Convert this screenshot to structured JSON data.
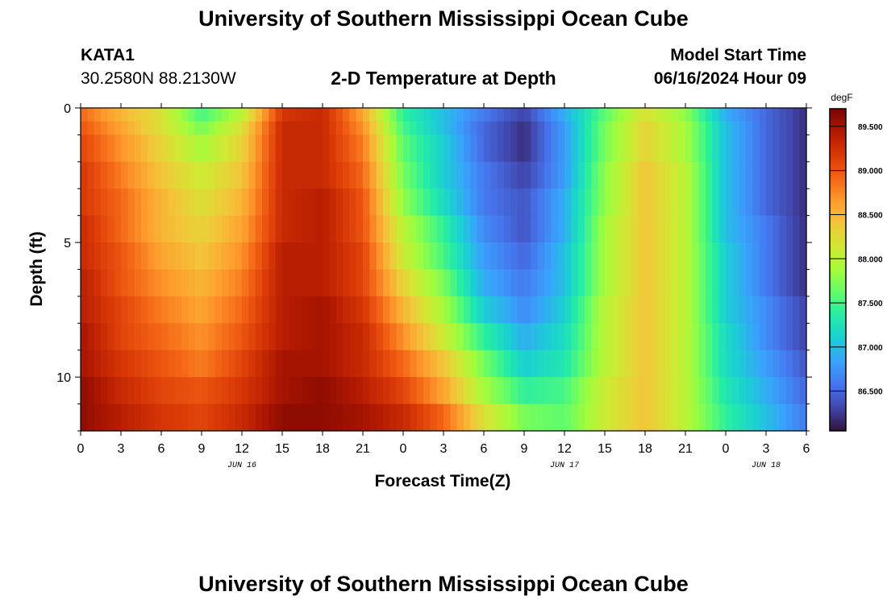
{
  "page": {
    "title_top": "University of Southern Mississippi Ocean Cube",
    "title_bottom": "University of Southern Mississippi Ocean Cube",
    "station_id": "KATA1",
    "station_coords": "30.2580N  88.2130W",
    "model_start_label": "Model Start Time",
    "model_start_value": "06/16/2024 Hour 09"
  },
  "chart_data": {
    "type": "heatmap",
    "title": "2-D Temperature at Depth",
    "xlabel": "Forecast Time(Z)",
    "ylabel": "Depth (ft)",
    "x_unit": "hours since 00Z Jun 16",
    "xlim": [
      0,
      54
    ],
    "ylim": [
      12,
      0
    ],
    "x_ticks": [
      {
        "value": 0,
        "label": "0"
      },
      {
        "value": 3,
        "label": "3"
      },
      {
        "value": 6,
        "label": "6"
      },
      {
        "value": 9,
        "label": "9"
      },
      {
        "value": 12,
        "label": "12"
      },
      {
        "value": 15,
        "label": "15"
      },
      {
        "value": 18,
        "label": "18"
      },
      {
        "value": 21,
        "label": "21"
      },
      {
        "value": 24,
        "label": "0"
      },
      {
        "value": 27,
        "label": "3"
      },
      {
        "value": 30,
        "label": "6"
      },
      {
        "value": 33,
        "label": "9"
      },
      {
        "value": 36,
        "label": "12"
      },
      {
        "value": 39,
        "label": "15"
      },
      {
        "value": 42,
        "label": "18"
      },
      {
        "value": 45,
        "label": "21"
      },
      {
        "value": 48,
        "label": "0"
      },
      {
        "value": 51,
        "label": "3"
      },
      {
        "value": 54,
        "label": "6"
      }
    ],
    "date_labels": [
      {
        "value": 12,
        "label": "JUN 16"
      },
      {
        "value": 36,
        "label": "JUN 17"
      },
      {
        "value": 51,
        "label": "JUN 18"
      }
    ],
    "y_ticks": [
      {
        "value": 0,
        "label": "0"
      },
      {
        "value": 5,
        "label": "5"
      },
      {
        "value": 10,
        "label": "10"
      }
    ],
    "colorbar": {
      "unit": "degF",
      "range": [
        86.05,
        89.7
      ],
      "ticks": [
        "89.500",
        "89.000",
        "88.500",
        "88.000",
        "87.500",
        "87.000",
        "86.500"
      ],
      "tick_values": [
        89.5,
        89.0,
        88.5,
        88.0,
        87.5,
        87.0,
        86.5
      ],
      "stops": [
        "#30123b",
        "#4145ab",
        "#4675ed",
        "#39a2fc",
        "#1bcfd4",
        "#24eca6",
        "#61fc6c",
        "#a4fc3b",
        "#d1e834",
        "#f3c63a",
        "#fe9b2d",
        "#f36315",
        "#d93806",
        "#b11901",
        "#7a0403"
      ]
    },
    "depth_levels_ft": [
      0.25,
      0.75,
      1.5,
      2.5,
      3.5,
      4.5,
      5.5,
      6.5,
      7.5,
      8.5,
      9.5,
      10.5,
      11.5
    ],
    "time_hours": [
      0,
      3,
      6,
      9,
      12,
      15,
      18,
      21,
      24,
      27,
      30,
      33,
      36,
      39,
      42,
      45,
      48,
      51,
      54
    ],
    "values_degF": [
      [
        88.9,
        88.5,
        88.2,
        87.5,
        88.0,
        89.2,
        89.3,
        88.6,
        87.4,
        87.0,
        86.6,
        86.3,
        86.9,
        87.6,
        88.2,
        87.8,
        86.9,
        86.5,
        86.2
      ],
      [
        89.0,
        88.6,
        88.2,
        87.7,
        88.2,
        89.3,
        89.3,
        88.7,
        87.5,
        87.0,
        86.5,
        86.2,
        86.8,
        87.7,
        88.3,
        87.9,
        87.0,
        86.5,
        86.2
      ],
      [
        89.1,
        88.7,
        88.3,
        87.9,
        88.3,
        89.3,
        89.3,
        88.8,
        87.6,
        87.1,
        86.5,
        86.2,
        86.8,
        87.7,
        88.3,
        87.9,
        87.0,
        86.5,
        86.2
      ],
      [
        89.2,
        88.8,
        88.4,
        88.1,
        88.4,
        89.3,
        89.3,
        88.9,
        87.7,
        87.1,
        86.6,
        86.3,
        86.8,
        87.8,
        88.4,
        88.0,
        87.0,
        86.5,
        86.2
      ],
      [
        89.2,
        88.9,
        88.5,
        88.2,
        88.5,
        89.3,
        89.4,
        89.0,
        87.8,
        87.2,
        86.6,
        86.4,
        86.9,
        87.8,
        88.4,
        88.0,
        87.0,
        86.5,
        86.2
      ],
      [
        89.3,
        88.9,
        88.5,
        88.3,
        88.6,
        89.3,
        89.4,
        89.0,
        88.0,
        87.4,
        86.7,
        86.4,
        86.9,
        87.9,
        88.4,
        88.0,
        87.0,
        86.6,
        86.2
      ],
      [
        89.3,
        89.0,
        88.6,
        88.4,
        88.7,
        89.4,
        89.4,
        89.1,
        88.1,
        87.5,
        86.8,
        86.5,
        87.0,
        87.9,
        88.4,
        88.0,
        87.1,
        86.6,
        86.2
      ],
      [
        89.4,
        89.0,
        88.7,
        88.5,
        88.8,
        89.4,
        89.4,
        89.1,
        88.3,
        87.7,
        86.9,
        86.6,
        87.0,
        87.9,
        88.4,
        88.0,
        87.1,
        86.6,
        86.2
      ],
      [
        89.4,
        89.1,
        88.8,
        88.6,
        88.9,
        89.4,
        89.5,
        89.2,
        88.5,
        87.9,
        87.1,
        86.7,
        87.1,
        88.0,
        88.4,
        88.0,
        87.1,
        86.7,
        86.3
      ],
      [
        89.5,
        89.1,
        88.9,
        88.7,
        89.0,
        89.4,
        89.5,
        89.3,
        88.7,
        88.1,
        87.4,
        86.9,
        87.2,
        88.0,
        88.4,
        88.0,
        87.2,
        86.7,
        86.3
      ],
      [
        89.5,
        89.2,
        89.0,
        88.8,
        89.1,
        89.5,
        89.5,
        89.3,
        88.9,
        88.4,
        87.7,
        87.1,
        87.3,
        88.0,
        88.4,
        88.0,
        87.2,
        86.8,
        86.4
      ],
      [
        89.6,
        89.3,
        89.1,
        89.0,
        89.2,
        89.5,
        89.6,
        89.4,
        89.1,
        88.6,
        87.9,
        87.4,
        87.5,
        88.1,
        88.4,
        88.0,
        87.3,
        86.9,
        86.5
      ],
      [
        89.6,
        89.4,
        89.2,
        89.1,
        89.3,
        89.6,
        89.6,
        89.5,
        89.3,
        88.9,
        88.2,
        87.7,
        87.6,
        88.1,
        88.4,
        88.0,
        87.4,
        87.0,
        86.6
      ]
    ]
  }
}
